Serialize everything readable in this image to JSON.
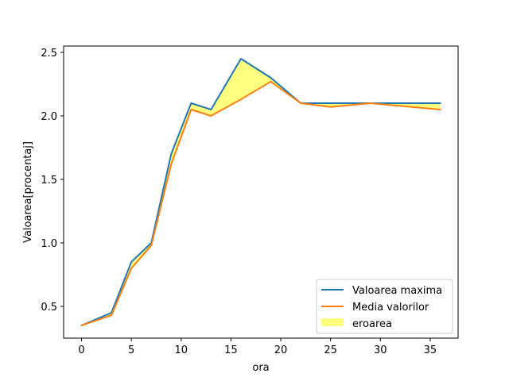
{
  "chart_data": {
    "type": "line",
    "title": "",
    "xlabel": "ora",
    "ylabel": "Valoarea[procentaj]",
    "xlim": [
      -1.8,
      37.8
    ],
    "ylim": [
      0.25,
      2.55
    ],
    "xticks": [
      0,
      5,
      10,
      15,
      20,
      25,
      30,
      35
    ],
    "yticks": [
      0.5,
      1.0,
      1.5,
      2.0,
      2.5
    ],
    "x": [
      0,
      3,
      5,
      7,
      9,
      11,
      13,
      16,
      19,
      22,
      25,
      29,
      36
    ],
    "series": [
      {
        "name": "Valoarea maxima",
        "color": "#1f77b4",
        "values": [
          0.35,
          0.45,
          0.85,
          1.0,
          1.7,
          2.1,
          2.05,
          2.45,
          2.3,
          2.1,
          2.1,
          2.1,
          2.1
        ]
      },
      {
        "name": "Media valorilor",
        "color": "#ff7f0e",
        "values": [
          0.35,
          0.43,
          0.8,
          0.98,
          1.62,
          2.05,
          2.0,
          2.13,
          2.27,
          2.1,
          2.07,
          2.1,
          2.05
        ]
      }
    ],
    "fill": {
      "name": "eroarea",
      "color": "#ffff00",
      "opacity": 0.5,
      "between": [
        "Valoarea maxima",
        "Media valorilor"
      ]
    },
    "legend": "lower-right",
    "grid": false
  }
}
